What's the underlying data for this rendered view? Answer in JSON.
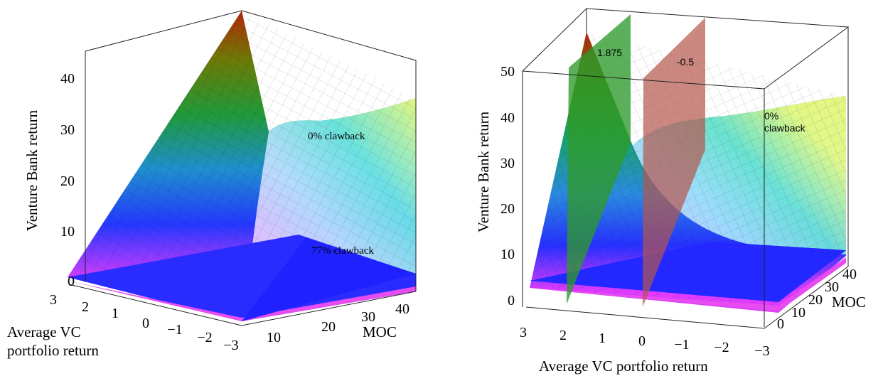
{
  "chart_data": [
    {
      "type": "surface3d",
      "zlabel": "Venture Bank return",
      "xlabel": "Average VC portfolio return",
      "ylabel": "MOC",
      "x_ticks": [
        "3",
        "2",
        "1",
        "0",
        "−1",
        "−2",
        "−3"
      ],
      "y_ticks": [
        "10",
        "20",
        "30",
        "40"
      ],
      "z_ticks": [
        "0",
        "10",
        "20",
        "30",
        "40"
      ],
      "xlim": [
        -3,
        3
      ],
      "ylim": [
        0,
        45
      ],
      "zlim": [
        0,
        45
      ],
      "series": [
        {
          "name": "0% clawback",
          "peak_value": 45,
          "far_edge_value": 36
        },
        {
          "name": "77% clawback",
          "peak_value": 1
        }
      ],
      "annotations": []
    },
    {
      "type": "surface3d",
      "zlabel": "Venture Bank return",
      "xlabel": "Average VC portfolio return",
      "ylabel": "MOC",
      "x_ticks": [
        "3",
        "2",
        "1",
        "0",
        "−1",
        "−2",
        "−3"
      ],
      "y_ticks": [
        "0",
        "10",
        "20",
        "30",
        "40"
      ],
      "z_ticks": [
        "0",
        "10",
        "20",
        "30",
        "40",
        "50"
      ],
      "xlim": [
        -3,
        3
      ],
      "ylim": [
        0,
        45
      ],
      "zlim": [
        0,
        50
      ],
      "series": [
        {
          "name": "0%\nclawback",
          "peak_value": 50,
          "far_edge_value": 43
        }
      ],
      "annotations": [
        {
          "label": "1.875",
          "x": 1.875
        },
        {
          "label": "-0.5",
          "x": -0.5
        }
      ]
    }
  ]
}
